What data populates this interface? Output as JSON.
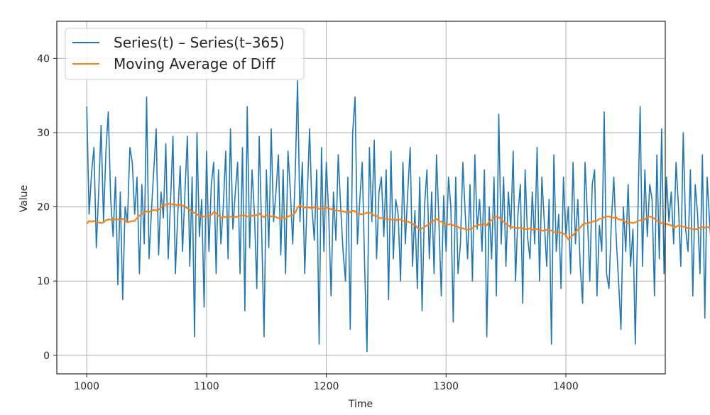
{
  "chart_data": {
    "type": "line",
    "title": "",
    "xlabel": "Time",
    "ylabel": "Value",
    "xlim": [
      975,
      1483
    ],
    "ylim": [
      -2.5,
      45
    ],
    "xticks": [
      1000,
      1100,
      1200,
      1300,
      1400
    ],
    "yticks": [
      0,
      10,
      20,
      30,
      40
    ],
    "grid": true,
    "legend_position": "top-left",
    "x_start": 1000,
    "x_step": 2,
    "series": [
      {
        "name": "Series(t) – Series(t–365)",
        "color": "#1f77b4",
        "values": [
          33.5,
          19,
          24.5,
          28,
          14.5,
          22,
          31,
          18,
          27.5,
          32.8,
          21,
          16,
          24,
          9.5,
          22,
          7.5,
          20,
          18,
          28,
          26,
          19,
          24,
          11,
          23,
          15,
          34.8,
          13,
          19.5,
          25,
          30.5,
          13.5,
          22,
          18.5,
          28.5,
          13,
          21,
          29.5,
          11,
          19,
          25.5,
          14,
          22,
          29.5,
          12,
          24,
          2.5,
          30,
          16,
          21,
          6.5,
          27.5,
          14,
          23,
          26,
          11,
          25,
          15,
          20,
          27.5,
          13,
          30.5,
          17,
          22,
          26,
          11,
          28,
          6,
          33.5,
          14.5,
          25,
          19,
          9,
          29.5,
          17,
          2.5,
          25,
          14.5,
          30.5,
          18,
          22,
          27,
          13.5,
          25,
          11,
          27.5,
          22,
          15,
          24,
          37,
          18,
          26,
          11,
          21,
          30.5,
          20,
          15.5,
          25,
          1.5,
          28,
          14,
          26,
          19,
          8,
          22,
          15.5,
          27,
          20,
          14,
          10,
          24,
          3.5,
          30,
          34.8,
          15,
          21,
          26,
          12,
          0.5,
          28,
          18,
          29,
          13,
          22,
          24,
          16,
          25,
          7.5,
          27.5,
          13,
          21,
          19,
          10,
          26,
          15,
          22,
          28,
          12,
          19.5,
          9,
          24,
          6,
          20,
          25,
          13,
          22,
          11,
          27,
          18,
          8,
          21.5,
          14,
          24,
          20,
          4.5,
          24,
          11,
          15,
          26,
          19,
          13,
          23,
          10,
          27,
          17,
          21,
          14,
          25,
          2.5,
          20,
          13,
          24,
          8,
          32.5,
          15,
          24,
          12,
          22,
          17,
          27.5,
          10,
          19,
          23,
          7,
          25,
          16,
          13,
          22,
          15,
          28,
          10,
          24,
          18,
          12,
          21,
          1.5,
          27,
          14,
          19,
          9,
          24,
          16,
          20,
          11,
          26,
          15,
          21,
          12,
          7,
          26,
          19,
          10,
          23,
          25,
          8,
          17.5,
          14,
          32.8,
          11,
          9,
          18,
          24,
          16,
          10,
          3.5,
          20,
          14,
          23,
          12,
          17,
          1.5,
          18,
          33.5,
          12,
          25,
          16,
          23,
          21,
          8,
          27,
          13,
          30.5,
          11,
          24,
          18,
          22,
          15,
          26,
          20,
          12,
          30,
          17,
          14,
          25,
          8,
          23,
          19,
          11,
          27,
          5,
          24,
          18,
          13,
          29,
          22,
          16,
          10,
          26,
          15,
          21,
          3.5,
          32.5,
          20,
          7,
          24,
          13,
          27,
          2,
          21,
          17,
          28.5,
          12,
          19,
          4.5,
          24,
          16,
          22,
          11,
          26,
          19,
          14,
          31.5,
          10,
          21,
          17,
          27,
          15,
          20,
          6,
          24,
          18,
          12,
          29.5,
          15,
          19,
          26.5,
          11,
          24,
          5,
          21,
          17,
          25,
          11,
          30,
          8,
          23,
          16,
          19,
          14,
          27,
          3,
          20,
          14,
          24,
          11,
          26.5,
          18,
          42.8,
          7,
          22,
          15,
          28.5,
          13,
          24,
          19,
          11,
          23.5,
          17,
          32,
          4.5,
          22,
          14,
          27,
          18,
          21,
          16,
          32.5,
          10,
          17,
          24.5,
          18
        ]
      },
      {
        "name": "Moving Average of Diff",
        "color": "#ff7f0e",
        "values": [
          17.7,
          18.1,
          18.0,
          18.1,
          18.0,
          17.9,
          17.8,
          17.9,
          18.2,
          18.3,
          18.3,
          18.4,
          18.3,
          18.3,
          18.2,
          18.4,
          18.2,
          17.9,
          18.0,
          18.1,
          18.1,
          18.5,
          18.8,
          19.0,
          19.2,
          19.4,
          19.3,
          19.5,
          19.6,
          19.5,
          19.6,
          19.9,
          20.2,
          20.3,
          20.4,
          20.4,
          20.3,
          20.3,
          20.2,
          20.3,
          20.2,
          20.1,
          19.8,
          19.6,
          19.3,
          19.2,
          19.0,
          18.8,
          18.7,
          18.7,
          18.7,
          18.8,
          18.9,
          19.3,
          19.1,
          18.8,
          18.5,
          18.7,
          18.6,
          18.7,
          18.7,
          18.6,
          18.6,
          18.7,
          18.8,
          18.9,
          18.8,
          18.7,
          18.8,
          18.8,
          18.8,
          18.9,
          19.1,
          18.8,
          18.6,
          18.9,
          18.8,
          18.7,
          18.8,
          18.6,
          18.5,
          18.4,
          18.6,
          18.4,
          18.7,
          18.8,
          18.9,
          19.2,
          19.9,
          20.2,
          20.0,
          19.9,
          20.0,
          19.9,
          19.8,
          20.0,
          19.9,
          19.7,
          19.8,
          19.8,
          19.9,
          19.8,
          19.7,
          19.6,
          19.5,
          19.5,
          19.4,
          19.4,
          19.3,
          19.3,
          19.3,
          19.5,
          19.4,
          19.1,
          19.0,
          19.0,
          19.1,
          19.2,
          19.2,
          19.1,
          18.8,
          18.8,
          18.5,
          18.5,
          18.4,
          18.4,
          18.3,
          18.3,
          18.3,
          18.2,
          18.3,
          18.3,
          18.1,
          18.1,
          18.0,
          17.9,
          17.7,
          17.6,
          17.2,
          16.9,
          17.1,
          17.3,
          17.5,
          17.7,
          17.9,
          18.2,
          18.4,
          18.1,
          18.0,
          17.8,
          17.6,
          17.6,
          17.7,
          17.5,
          17.4,
          17.3,
          17.1,
          17.1,
          17.0,
          16.9,
          17.0,
          17.1,
          17.4,
          17.5,
          17.6,
          17.6,
          17.7,
          17.5,
          18.0,
          18.2,
          18.6,
          18.7,
          18.6,
          18.3,
          18.0,
          17.7,
          17.5,
          17.2,
          17.3,
          17.2,
          17.1,
          17.2,
          17.1,
          17.0,
          17.0,
          17.1,
          16.9,
          17.0,
          17.0,
          16.9,
          16.8,
          16.8,
          16.9,
          16.9,
          16.8,
          16.6,
          16.6,
          16.6,
          16.5,
          16.4,
          16.2,
          15.6,
          15.9,
          16.2,
          16.6,
          16.9,
          17.2,
          17.6,
          17.8,
          17.7,
          17.9,
          18.0,
          18.1,
          18.1,
          18.4,
          18.4,
          18.6,
          18.7,
          18.7,
          18.6,
          18.5,
          18.6,
          18.3,
          18.3,
          18.2,
          17.9,
          17.8,
          17.9,
          17.8,
          17.9,
          18.1,
          18.2,
          18.2,
          18.3,
          18.6,
          18.7,
          18.6,
          18.4,
          18.1,
          18.0,
          17.8,
          17.7,
          17.7,
          17.6,
          17.5,
          17.2,
          17.3,
          17.5,
          17.4,
          17.3,
          17.3,
          17.1,
          17.1,
          17.0,
          17.0,
          17.0,
          17.2,
          17.3,
          17.2,
          17.3,
          17.2,
          17.3,
          17.5,
          17.6,
          17.6,
          17.4,
          17.2,
          17.1,
          17.0,
          16.8,
          16.9,
          17.0,
          17.1,
          17.0,
          17.2,
          17.3,
          17.5,
          17.4,
          17.6,
          17.5,
          17.8,
          17.9,
          18.1,
          18.1,
          18.2,
          18.4,
          18.3,
          18.5,
          18.6,
          18.8,
          18.8,
          18.9,
          19.0,
          19.1,
          19.2,
          19.0,
          19.1,
          19.2,
          19.4,
          19.5,
          19.3,
          19.2,
          19.3,
          19.4,
          19.3,
          19.4,
          19.5,
          19.6,
          19.7,
          19.8,
          19.8
        ]
      }
    ]
  }
}
